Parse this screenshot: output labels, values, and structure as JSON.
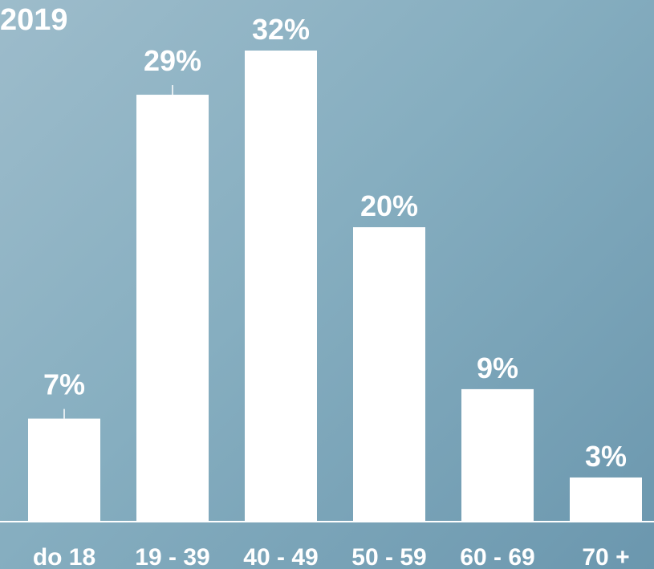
{
  "chart_data": {
    "type": "bar",
    "title": "2019",
    "categories": [
      "do 18",
      "19 - 39",
      "40 - 49",
      "50 - 59",
      "60 - 69",
      "70 +"
    ],
    "values": [
      7,
      29,
      32,
      20,
      9,
      3
    ],
    "value_labels": [
      "7%",
      "29%",
      "32%",
      "20%",
      "9%",
      "3%"
    ],
    "unit": "%",
    "ylim": [
      0,
      32
    ],
    "grid": false,
    "legend": "none",
    "bar_color": "#ffffff"
  }
}
